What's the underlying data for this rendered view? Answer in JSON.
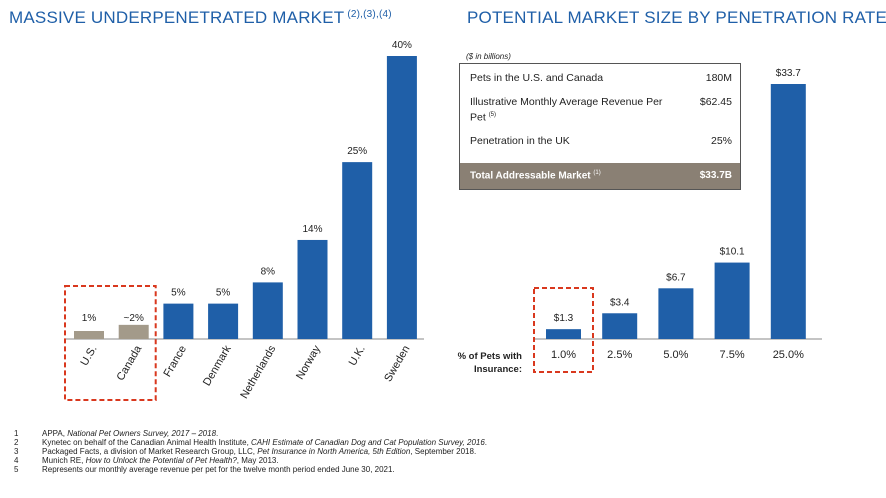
{
  "left_title": {
    "text": "MASSIVE UNDERPENETRATED MARKET",
    "refs": "(2),(3),(4)"
  },
  "right_title": {
    "text": "POTENTIAL MARKET SIZE BY PENETRATION RATE"
  },
  "colors": {
    "title": "#1f5fa8",
    "bar": "#1f5fa8",
    "bar_muted": "#a39a8a",
    "highlight_box": "#d9381e",
    "total_row": "#8a8074"
  },
  "market_table": {
    "units": "($ in billions)",
    "rows": [
      {
        "label": "Pets in the U.S. and Canada",
        "value": "180M",
        "ref": ""
      },
      {
        "label": "Illustrative Monthly Average Revenue Per Pet",
        "value": "$62.45",
        "ref": "(5)"
      },
      {
        "label": "Penetration in the UK",
        "value": "25%",
        "ref": ""
      }
    ],
    "total": {
      "label": "Total Addressable Market",
      "ref": "(1)",
      "value": "$33.7B"
    }
  },
  "insurance_label": [
    "% of Pets with",
    "Insurance:"
  ],
  "chart_data": [
    {
      "type": "bar",
      "title": "MASSIVE UNDERPENETRATED MARKET",
      "categories": [
        "U.S.",
        "Canada",
        "France",
        "Denmark",
        "Netherlands",
        "Norway",
        "U.K.",
        "Sweden"
      ],
      "values": [
        1,
        2,
        5,
        5,
        8,
        14,
        25,
        40
      ],
      "data_labels": [
        "1%",
        "~2%",
        "5%",
        "5%",
        "8%",
        "14%",
        "25%",
        "40%"
      ],
      "highlighted": [
        "U.S.",
        "Canada"
      ],
      "ylim": [
        0,
        40
      ],
      "grid": false
    },
    {
      "type": "bar",
      "title": "POTENTIAL MARKET SIZE BY PENETRATION RATE",
      "categories": [
        "1.0%",
        "2.5%",
        "5.0%",
        "7.5%",
        "25.0%"
      ],
      "values": [
        1.3,
        3.4,
        6.7,
        10.1,
        33.7
      ],
      "data_labels": [
        "$1.3",
        "$3.4",
        "$6.7",
        "$10.1",
        "$33.7"
      ],
      "highlighted": [
        "1.0%"
      ],
      "ylim": [
        0,
        33.7
      ],
      "grid": false
    }
  ],
  "footnotes": [
    {
      "num": "1",
      "parts": [
        {
          "text": "APPA, ",
          "italic": false
        },
        {
          "text": "National Pet Owners Survey, 2017 – 2018",
          "italic": true
        },
        {
          "text": ".",
          "italic": false
        }
      ]
    },
    {
      "num": "2",
      "parts": [
        {
          "text": "Kynetec on behalf of the Canadian Animal Health Institute, ",
          "italic": false
        },
        {
          "text": "CAHI Estimate of Canadian Dog and Cat Population Survey, 2016",
          "italic": true
        },
        {
          "text": ".",
          "italic": false
        }
      ]
    },
    {
      "num": "3",
      "parts": [
        {
          "text": "Packaged Facts, a division of Market Research Group, LLC, ",
          "italic": false
        },
        {
          "text": "Pet Insurance in North America, 5th Edition",
          "italic": true
        },
        {
          "text": ", September 2018.",
          "italic": false
        }
      ]
    },
    {
      "num": "4",
      "parts": [
        {
          "text": "Munich RE, ",
          "italic": false
        },
        {
          "text": "How to Unlock the Potential of Pet Health?",
          "italic": true
        },
        {
          "text": ", May 2013.",
          "italic": false
        }
      ]
    },
    {
      "num": "5",
      "parts": [
        {
          "text": "Represents our monthly average revenue per pet for the twelve month period ended June 30, 2021.",
          "italic": false
        }
      ]
    }
  ]
}
